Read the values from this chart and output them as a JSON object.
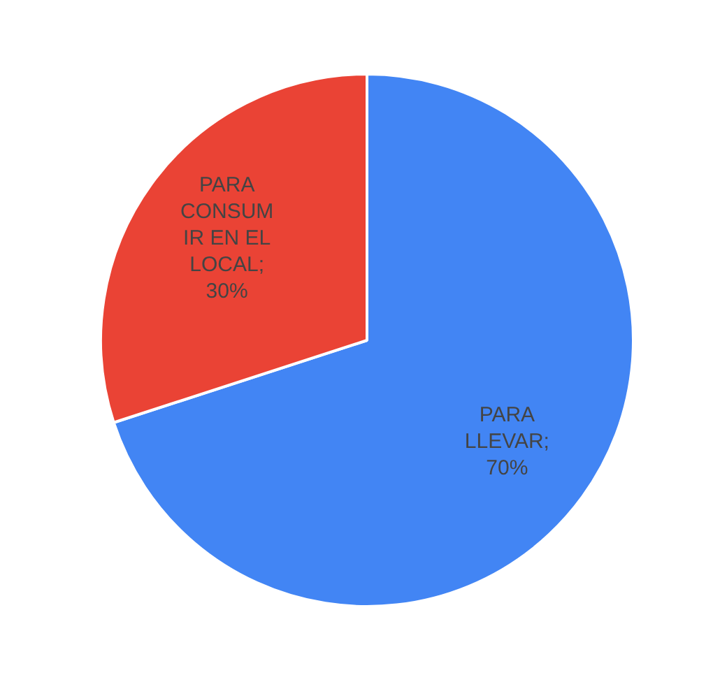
{
  "chart_data": {
    "type": "pie",
    "categories": [
      "PARA LLEVAR",
      "PARA CONSUMIR EN EL LOCAL"
    ],
    "values": [
      70,
      30
    ],
    "colors": [
      "#4285f4",
      "#ea4335"
    ],
    "value_labels": [
      "; 70%",
      "; 30%"
    ],
    "legend": false
  }
}
